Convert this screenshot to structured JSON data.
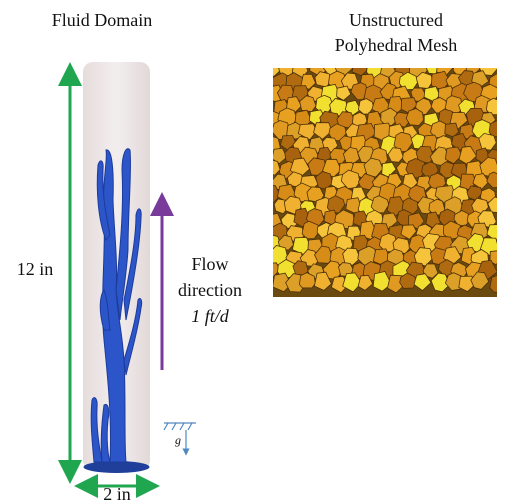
{
  "left_panel": {
    "title": "Fluid Domain",
    "height_label": "12 in",
    "width_label": "2 in",
    "flow_label": [
      "Flow",
      "direction",
      "1 ft/d"
    ],
    "gravity_label": "g"
  },
  "right_panel": {
    "title": [
      "Unstructured",
      "Polyhedral Mesh"
    ]
  }
}
